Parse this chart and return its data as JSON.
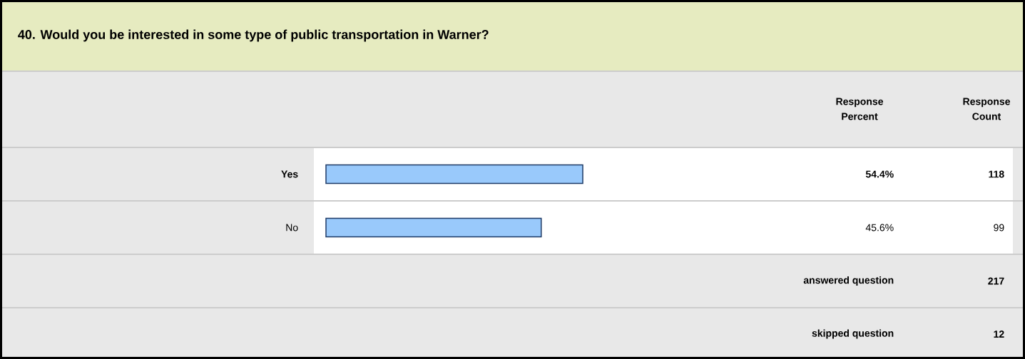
{
  "chart_data": {
    "type": "bar",
    "orientation": "horizontal",
    "title": "40. Would you be interested in some type of public transportation in Warner?",
    "categories": [
      "Yes",
      "No"
    ],
    "values": [
      54.4,
      45.6
    ],
    "value_labels": [
      "54.4%",
      "45.6%"
    ],
    "color": "#99c9fb",
    "annotations": [
      "Response Percent",
      "Response Count",
      "118",
      "99",
      "answered question",
      "217",
      "skipped question",
      "12"
    ]
  }
}
